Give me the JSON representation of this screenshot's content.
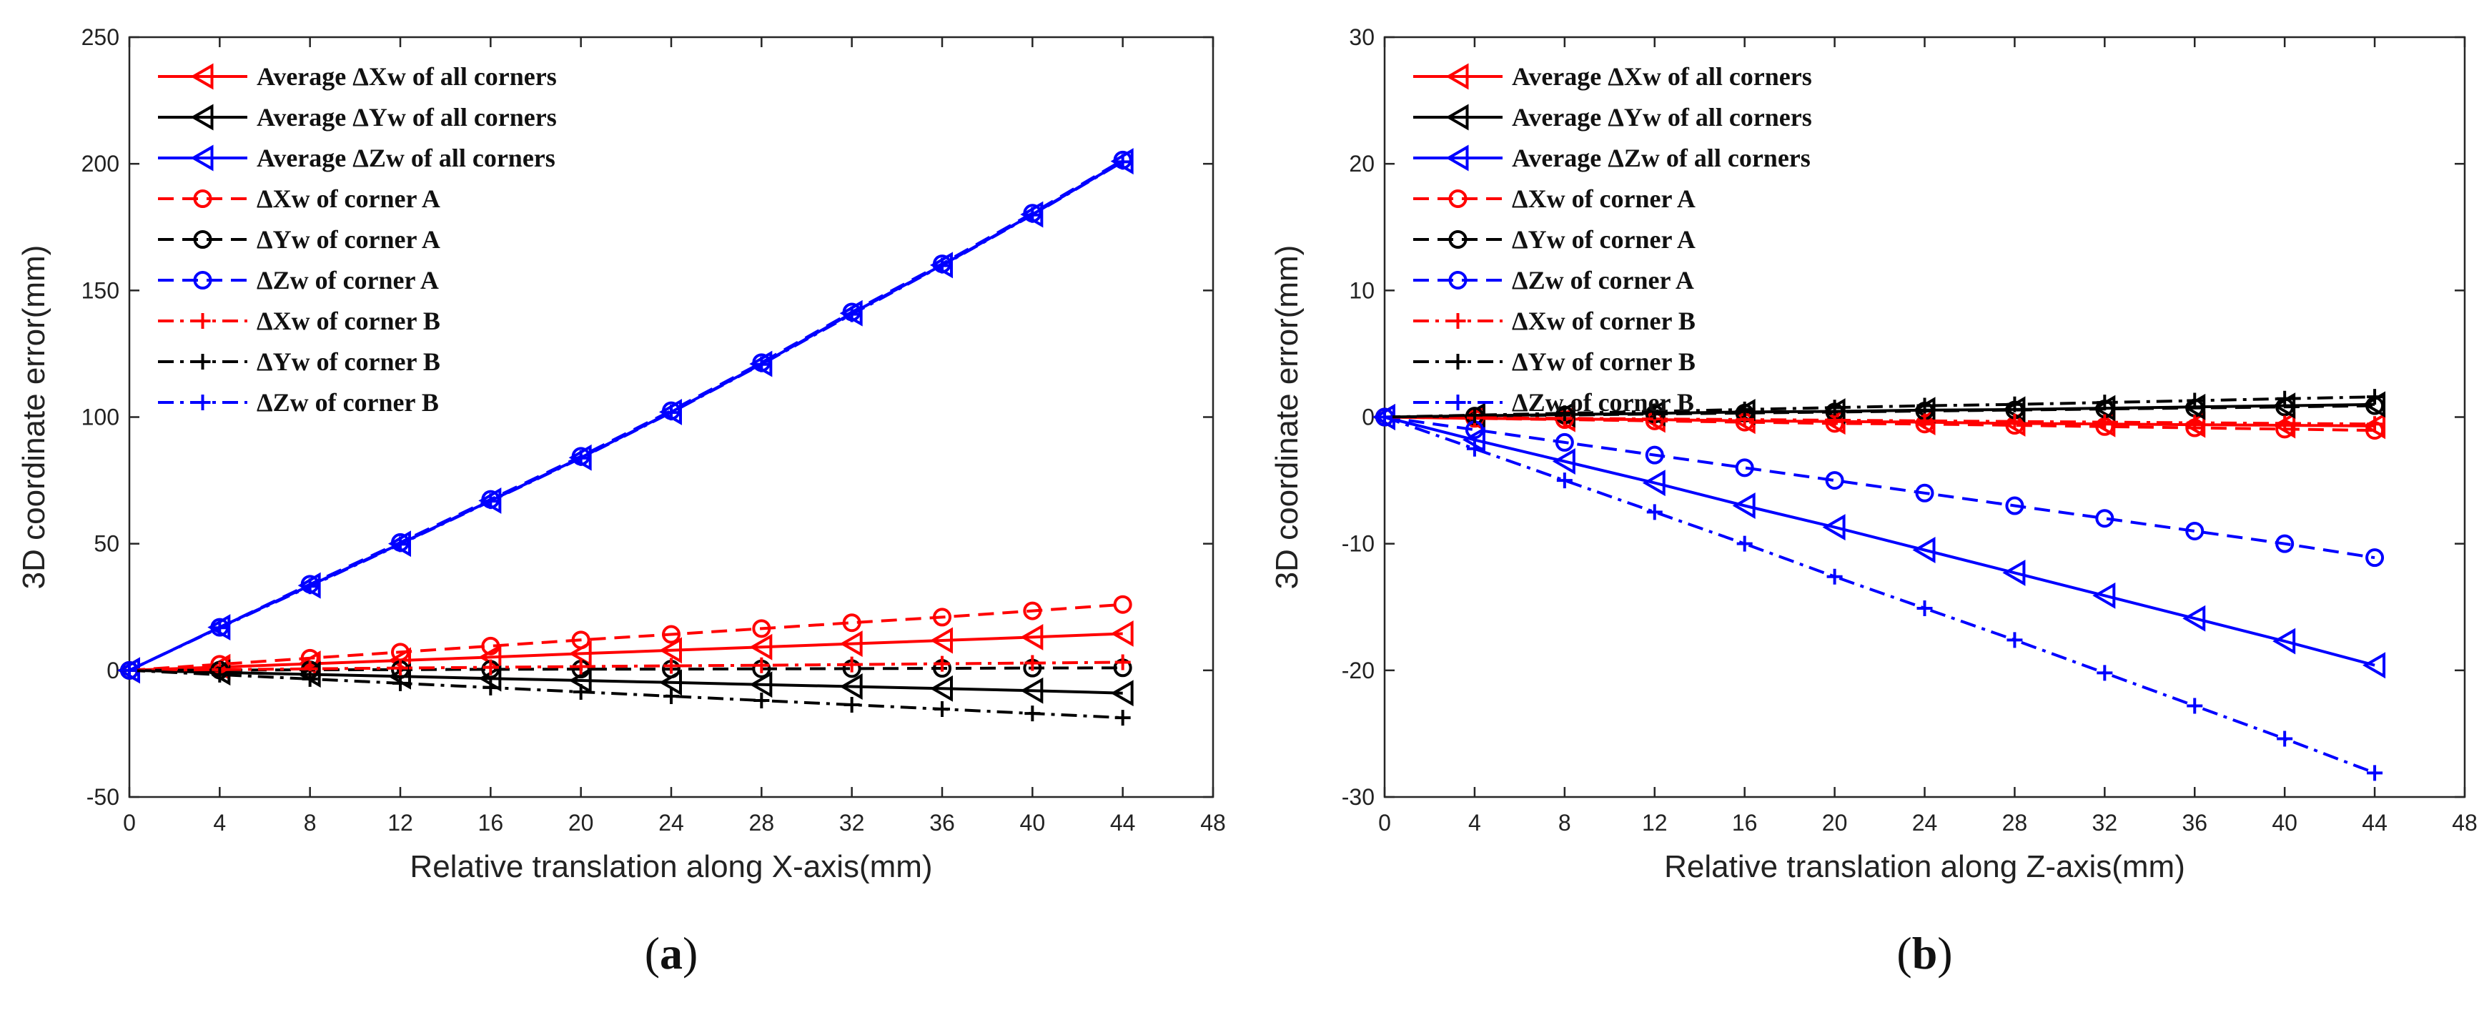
{
  "chart_data": [
    {
      "type": "line",
      "caption": "(a)",
      "xlabel": "Relative translation along X-axis(mm)",
      "ylabel": "3D coordinate error(mm)",
      "xlim": [
        0,
        48
      ],
      "ylim": [
        -50,
        250
      ],
      "xticks": [
        0,
        4,
        8,
        12,
        16,
        20,
        24,
        28,
        32,
        36,
        40,
        44,
        48
      ],
      "yticks": [
        -50,
        0,
        50,
        100,
        150,
        200,
        250
      ],
      "legend_position": "top-left",
      "x": [
        0,
        4,
        8,
        12,
        16,
        20,
        24,
        28,
        32,
        36,
        40,
        44
      ],
      "series": [
        {
          "name": "Average ΔXw of all corners",
          "color": "#ff0000",
          "dash": "solid",
          "marker": "triangle-left",
          "values": [
            0,
            1.3,
            2.6,
            3.9,
            5.2,
            6.6,
            7.9,
            9.2,
            10.5,
            11.8,
            13.1,
            14.5
          ]
        },
        {
          "name": "Average ΔYw of all corners",
          "color": "#000000",
          "dash": "solid",
          "marker": "triangle-left",
          "values": [
            0,
            -0.8,
            -1.6,
            -2.4,
            -3.2,
            -4.0,
            -4.8,
            -5.6,
            -6.4,
            -7.2,
            -8.0,
            -9.0
          ]
        },
        {
          "name": "Average ΔZw of all corners",
          "color": "#0000ff",
          "dash": "solid",
          "marker": "triangle-left",
          "values": [
            0,
            17,
            33.5,
            50,
            67,
            84,
            102,
            121,
            141,
            160,
            180,
            201
          ]
        },
        {
          "name": "ΔXw of corner A",
          "color": "#ff0000",
          "dash": "dash",
          "marker": "circle",
          "values": [
            0,
            2.4,
            4.8,
            7.2,
            9.6,
            12,
            14.2,
            16.5,
            18.8,
            21,
            23.5,
            26
          ]
        },
        {
          "name": "ΔYw of corner A",
          "color": "#000000",
          "dash": "dash",
          "marker": "circle",
          "values": [
            0,
            0.1,
            0.2,
            0.3,
            0.4,
            0.5,
            0.5,
            0.6,
            0.7,
            0.8,
            0.9,
            1
          ]
        },
        {
          "name": "ΔZw of corner A",
          "color": "#0000ff",
          "dash": "dash",
          "marker": "circle",
          "values": [
            0,
            17,
            34,
            50.5,
            67.5,
            84.5,
            102.5,
            121.5,
            141.5,
            160.5,
            180.5,
            201.5
          ]
        },
        {
          "name": "ΔXw of corner B",
          "color": "#ff0000",
          "dash": "dashdot",
          "marker": "plus",
          "values": [
            0,
            0.3,
            0.6,
            0.9,
            1.2,
            1.5,
            1.8,
            2.0,
            2.3,
            2.6,
            2.9,
            3.2
          ]
        },
        {
          "name": "ΔYw of corner B",
          "color": "#000000",
          "dash": "dashdot",
          "marker": "plus",
          "values": [
            0,
            -1.7,
            -3.4,
            -5.1,
            -6.8,
            -8.5,
            -10.2,
            -11.9,
            -13.6,
            -15.3,
            -17,
            -18.7
          ]
        },
        {
          "name": "ΔZw of corner B",
          "color": "#0000ff",
          "dash": "dashdot",
          "marker": "plus",
          "values": [
            0,
            16.8,
            33.2,
            49.8,
            66.8,
            83.8,
            101.8,
            120.8,
            140.6,
            159.8,
            179.8,
            200.8
          ]
        }
      ]
    },
    {
      "type": "line",
      "caption": "(b)",
      "xlabel": "Relative translation along Z-axis(mm)",
      "ylabel": "3D coordinate error(mm)",
      "xlim": [
        0,
        48
      ],
      "ylim": [
        -30,
        30
      ],
      "xticks": [
        0,
        4,
        8,
        12,
        16,
        20,
        24,
        28,
        32,
        36,
        40,
        44,
        48
      ],
      "yticks": [
        -30,
        -20,
        -10,
        0,
        10,
        20,
        30
      ],
      "legend_position": "top-left",
      "x": [
        0,
        4,
        8,
        12,
        16,
        20,
        24,
        28,
        32,
        36,
        40,
        44
      ],
      "series": [
        {
          "name": "Average ΔXw of all corners",
          "color": "#ff0000",
          "dash": "solid",
          "marker": "triangle-left",
          "values": [
            0,
            -0.1,
            -0.15,
            -0.2,
            -0.3,
            -0.35,
            -0.4,
            -0.5,
            -0.55,
            -0.6,
            -0.65,
            -0.7
          ]
        },
        {
          "name": "Average ΔYw of all corners",
          "color": "#000000",
          "dash": "solid",
          "marker": "triangle-left",
          "values": [
            0,
            0.1,
            0.2,
            0.3,
            0.4,
            0.45,
            0.55,
            0.6,
            0.7,
            0.8,
            0.9,
            1.0
          ]
        },
        {
          "name": "Average ΔZw of all corners",
          "color": "#0000ff",
          "dash": "solid",
          "marker": "triangle-left",
          "values": [
            0,
            -1.8,
            -3.5,
            -5.2,
            -7.0,
            -8.7,
            -10.5,
            -12.3,
            -14.1,
            -15.9,
            -17.7,
            -19.6
          ]
        },
        {
          "name": "ΔXw of corner A",
          "color": "#ff0000",
          "dash": "dash",
          "marker": "circle",
          "values": [
            0,
            -0.1,
            -0.2,
            -0.3,
            -0.4,
            -0.5,
            -0.55,
            -0.65,
            -0.75,
            -0.85,
            -0.95,
            -1.05
          ]
        },
        {
          "name": "ΔYw of corner A",
          "color": "#000000",
          "dash": "dash",
          "marker": "circle",
          "values": [
            0,
            0.08,
            0.16,
            0.24,
            0.32,
            0.4,
            0.48,
            0.56,
            0.64,
            0.72,
            0.8,
            0.9
          ]
        },
        {
          "name": "ΔZw of corner A",
          "color": "#0000ff",
          "dash": "dash",
          "marker": "circle",
          "values": [
            0,
            -1.0,
            -2.0,
            -3.0,
            -4.0,
            -5.0,
            -6.0,
            -7.0,
            -8.0,
            -9.0,
            -10.0,
            -11.1
          ]
        },
        {
          "name": "ΔXw of corner B",
          "color": "#ff0000",
          "dash": "dashdot",
          "marker": "plus",
          "values": [
            0,
            -0.05,
            -0.1,
            -0.15,
            -0.2,
            -0.25,
            -0.3,
            -0.35,
            -0.4,
            -0.45,
            -0.5,
            -0.55
          ]
        },
        {
          "name": "ΔYw of corner B",
          "color": "#000000",
          "dash": "dashdot",
          "marker": "plus",
          "values": [
            0,
            0.15,
            0.3,
            0.45,
            0.6,
            0.75,
            0.9,
            1.0,
            1.15,
            1.3,
            1.45,
            1.6
          ]
        },
        {
          "name": "ΔZw of corner B",
          "color": "#0000ff",
          "dash": "dashdot",
          "marker": "plus",
          "values": [
            0,
            -2.5,
            -5.0,
            -7.5,
            -10.0,
            -12.6,
            -15.1,
            -17.6,
            -20.2,
            -22.8,
            -25.4,
            -28.1
          ]
        }
      ]
    }
  ]
}
